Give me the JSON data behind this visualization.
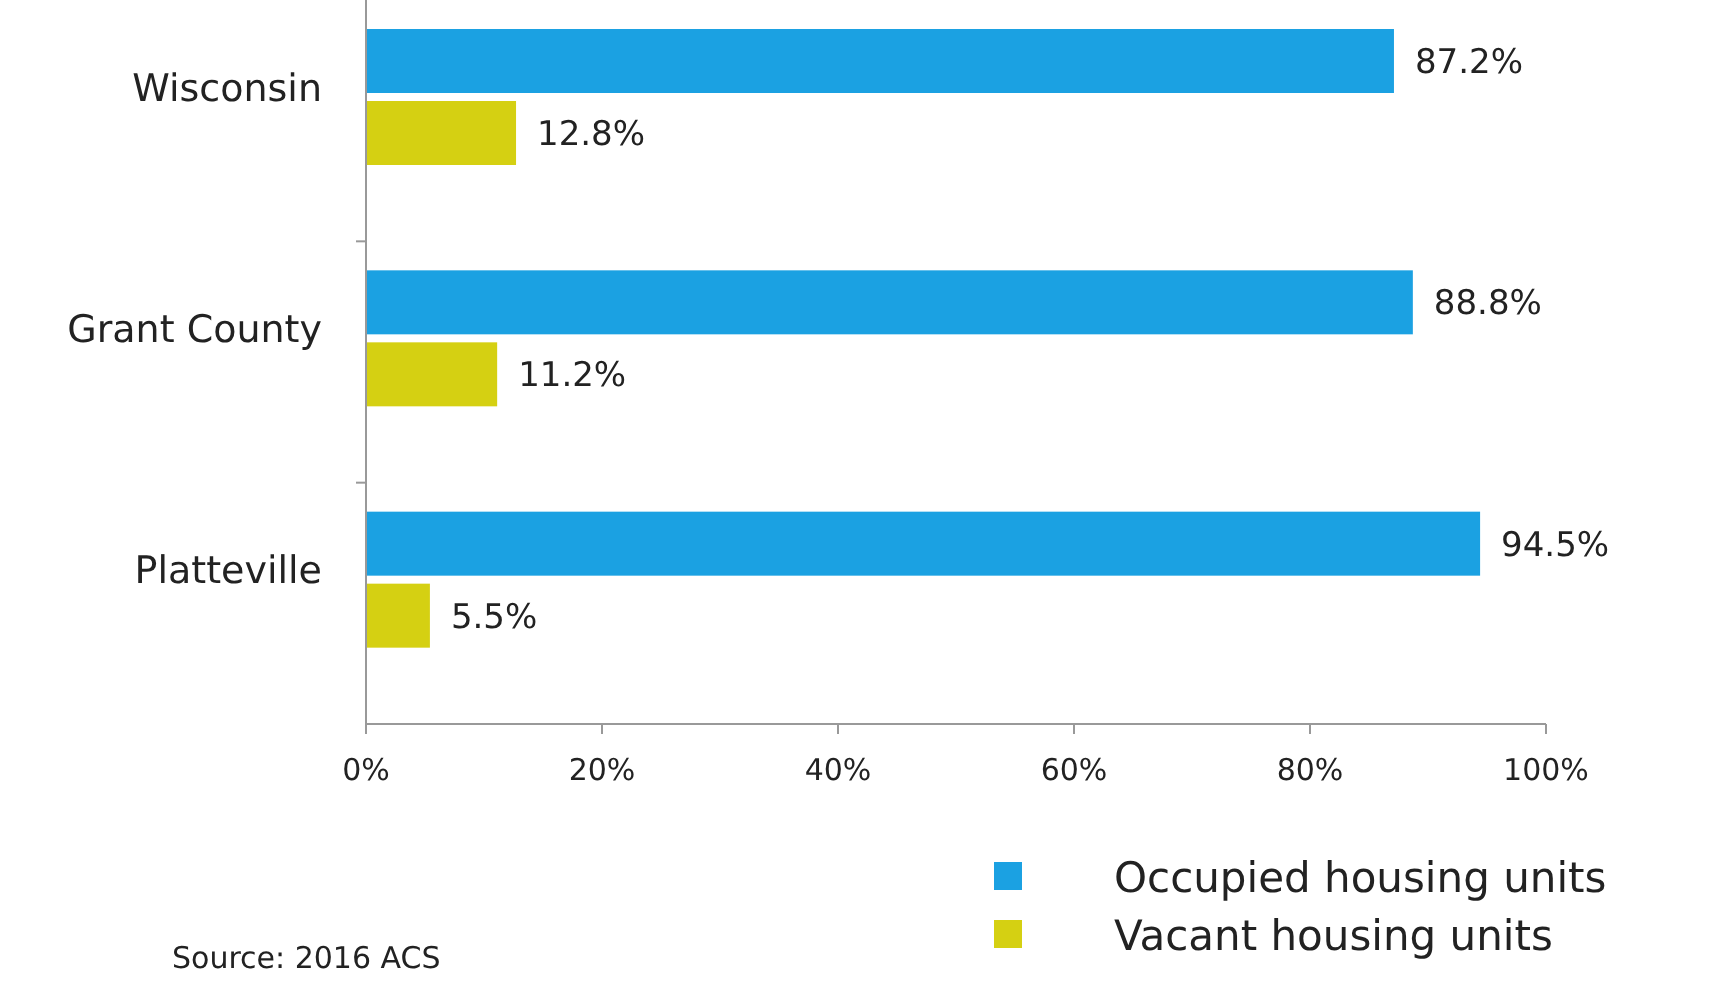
{
  "chart_data": {
    "type": "bar",
    "orientation": "horizontal",
    "categories": [
      "Wisconsin",
      "Grant County",
      "Platteville"
    ],
    "series": [
      {
        "name": "Occupied housing units",
        "color": "#1ba1e2",
        "values": [
          87.2,
          88.8,
          94.5
        ],
        "value_labels": [
          "87.2%",
          "88.8%",
          "94.5%"
        ]
      },
      {
        "name": "Vacant housing units",
        "color": "#d5d012",
        "values": [
          12.8,
          11.2,
          5.5
        ],
        "value_labels": [
          "12.8%",
          "11.2%",
          "5.5%"
        ]
      }
    ],
    "xlim": [
      0,
      100
    ],
    "xticks": [
      {
        "value": 0,
        "label": "0%"
      },
      {
        "value": 20,
        "label": "20%"
      },
      {
        "value": 40,
        "label": "40%"
      },
      {
        "value": 60,
        "label": "60%"
      },
      {
        "value": 80,
        "label": "80%"
      },
      {
        "value": 100,
        "label": "100%"
      }
    ],
    "grid": false,
    "legend": "bottom right",
    "annotations": [
      "Source: 2016 ACS"
    ]
  }
}
